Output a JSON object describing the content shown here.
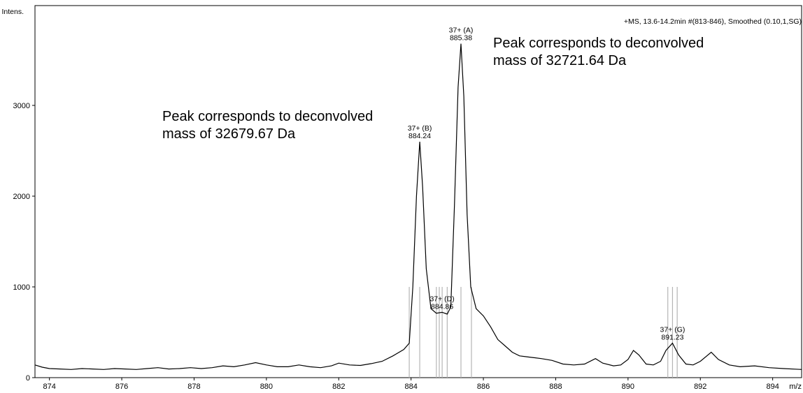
{
  "chart_data": {
    "type": "line",
    "title": "",
    "header": "+MS, 13.6-14.2min #(813-846), Smoothed (0.10,1,SG)",
    "ylabel": "Intens.",
    "xunit": "m/z",
    "xlim": [
      873.6,
      894.8
    ],
    "ylim": [
      0,
      4100
    ],
    "xticks": [
      {
        "value": 874,
        "label": "874"
      },
      {
        "value": 876,
        "label": "876"
      },
      {
        "value": 878,
        "label": "878"
      },
      {
        "value": 880,
        "label": "880"
      },
      {
        "value": 882,
        "label": "882"
      },
      {
        "value": 884,
        "label": "884"
      },
      {
        "value": 886,
        "label": "886"
      },
      {
        "value": 888,
        "label": "888"
      },
      {
        "value": 890,
        "label": "890"
      },
      {
        "value": 892,
        "label": "892"
      },
      {
        "value": 894,
        "label": "894"
      }
    ],
    "yticks": [
      {
        "value": 0,
        "label": "0"
      },
      {
        "value": 1000,
        "label": "1000"
      },
      {
        "value": 2000,
        "label": "2000"
      },
      {
        "value": 3000,
        "label": "3000"
      }
    ],
    "series": [
      {
        "color": "#000000",
        "points": [
          [
            873.6,
            140
          ],
          [
            873.8,
            115
          ],
          [
            874.0,
            100
          ],
          [
            874.3,
            95
          ],
          [
            874.6,
            90
          ],
          [
            874.9,
            100
          ],
          [
            875.2,
            95
          ],
          [
            875.5,
            90
          ],
          [
            875.8,
            100
          ],
          [
            876.1,
            95
          ],
          [
            876.4,
            90
          ],
          [
            876.7,
            100
          ],
          [
            877.0,
            110
          ],
          [
            877.3,
            95
          ],
          [
            877.6,
            100
          ],
          [
            877.9,
            110
          ],
          [
            878.2,
            100
          ],
          [
            878.5,
            110
          ],
          [
            878.8,
            130
          ],
          [
            879.1,
            120
          ],
          [
            879.4,
            140
          ],
          [
            879.7,
            165
          ],
          [
            880.0,
            140
          ],
          [
            880.3,
            120
          ],
          [
            880.6,
            120
          ],
          [
            880.9,
            140
          ],
          [
            881.2,
            120
          ],
          [
            881.5,
            110
          ],
          [
            881.8,
            130
          ],
          [
            882.0,
            160
          ],
          [
            882.3,
            140
          ],
          [
            882.6,
            135
          ],
          [
            882.9,
            155
          ],
          [
            883.2,
            180
          ],
          [
            883.5,
            240
          ],
          [
            883.8,
            310
          ],
          [
            883.95,
            380
          ],
          [
            884.05,
            1000
          ],
          [
            884.15,
            2000
          ],
          [
            884.24,
            2600
          ],
          [
            884.32,
            2100
          ],
          [
            884.42,
            1200
          ],
          [
            884.55,
            760
          ],
          [
            884.7,
            710
          ],
          [
            884.86,
            720
          ],
          [
            885.0,
            700
          ],
          [
            885.1,
            780
          ],
          [
            885.2,
            1900
          ],
          [
            885.3,
            3200
          ],
          [
            885.38,
            3680
          ],
          [
            885.46,
            3100
          ],
          [
            885.55,
            1800
          ],
          [
            885.65,
            1000
          ],
          [
            885.8,
            760
          ],
          [
            886.0,
            680
          ],
          [
            886.2,
            560
          ],
          [
            886.4,
            420
          ],
          [
            886.6,
            350
          ],
          [
            886.8,
            280
          ],
          [
            887.0,
            240
          ],
          [
            887.2,
            230
          ],
          [
            887.4,
            220
          ],
          [
            887.6,
            210
          ],
          [
            887.9,
            190
          ],
          [
            888.2,
            150
          ],
          [
            888.5,
            140
          ],
          [
            888.8,
            150
          ],
          [
            889.1,
            210
          ],
          [
            889.3,
            160
          ],
          [
            889.6,
            130
          ],
          [
            889.8,
            140
          ],
          [
            890.0,
            200
          ],
          [
            890.15,
            300
          ],
          [
            890.3,
            250
          ],
          [
            890.5,
            150
          ],
          [
            890.7,
            140
          ],
          [
            890.9,
            180
          ],
          [
            891.05,
            300
          ],
          [
            891.23,
            380
          ],
          [
            891.4,
            250
          ],
          [
            891.6,
            150
          ],
          [
            891.8,
            140
          ],
          [
            892.0,
            180
          ],
          [
            892.3,
            280
          ],
          [
            892.5,
            200
          ],
          [
            892.8,
            140
          ],
          [
            893.1,
            120
          ],
          [
            893.5,
            130
          ],
          [
            893.9,
            110
          ],
          [
            894.3,
            100
          ],
          [
            894.8,
            90
          ]
        ]
      }
    ],
    "sticks": [
      883.95,
      884.24,
      884.7,
      884.78,
      884.86,
      885.0,
      885.38,
      885.67,
      891.1,
      891.23,
      891.36
    ],
    "peak_labels": [
      {
        "x": 885.38,
        "y": 3680,
        "charge": "37+ (A)",
        "mz": "885.38"
      },
      {
        "x": 884.24,
        "y": 2600,
        "charge": "37+ (B)",
        "mz": "884.24"
      },
      {
        "x": 884.86,
        "y": 720,
        "charge": "37+ (D)",
        "mz": "884.86"
      },
      {
        "x": 891.23,
        "y": 380,
        "charge": "37+ (G)",
        "mz": "891.23"
      }
    ],
    "annotations": [
      {
        "lines": [
          "Peak corresponds to deconvolved",
          "mass of 32679.67 Da"
        ]
      },
      {
        "lines": [
          "Peak corresponds to deconvolved",
          "mass of 32721.64 Da"
        ]
      }
    ],
    "grid": false,
    "legend": "none"
  }
}
